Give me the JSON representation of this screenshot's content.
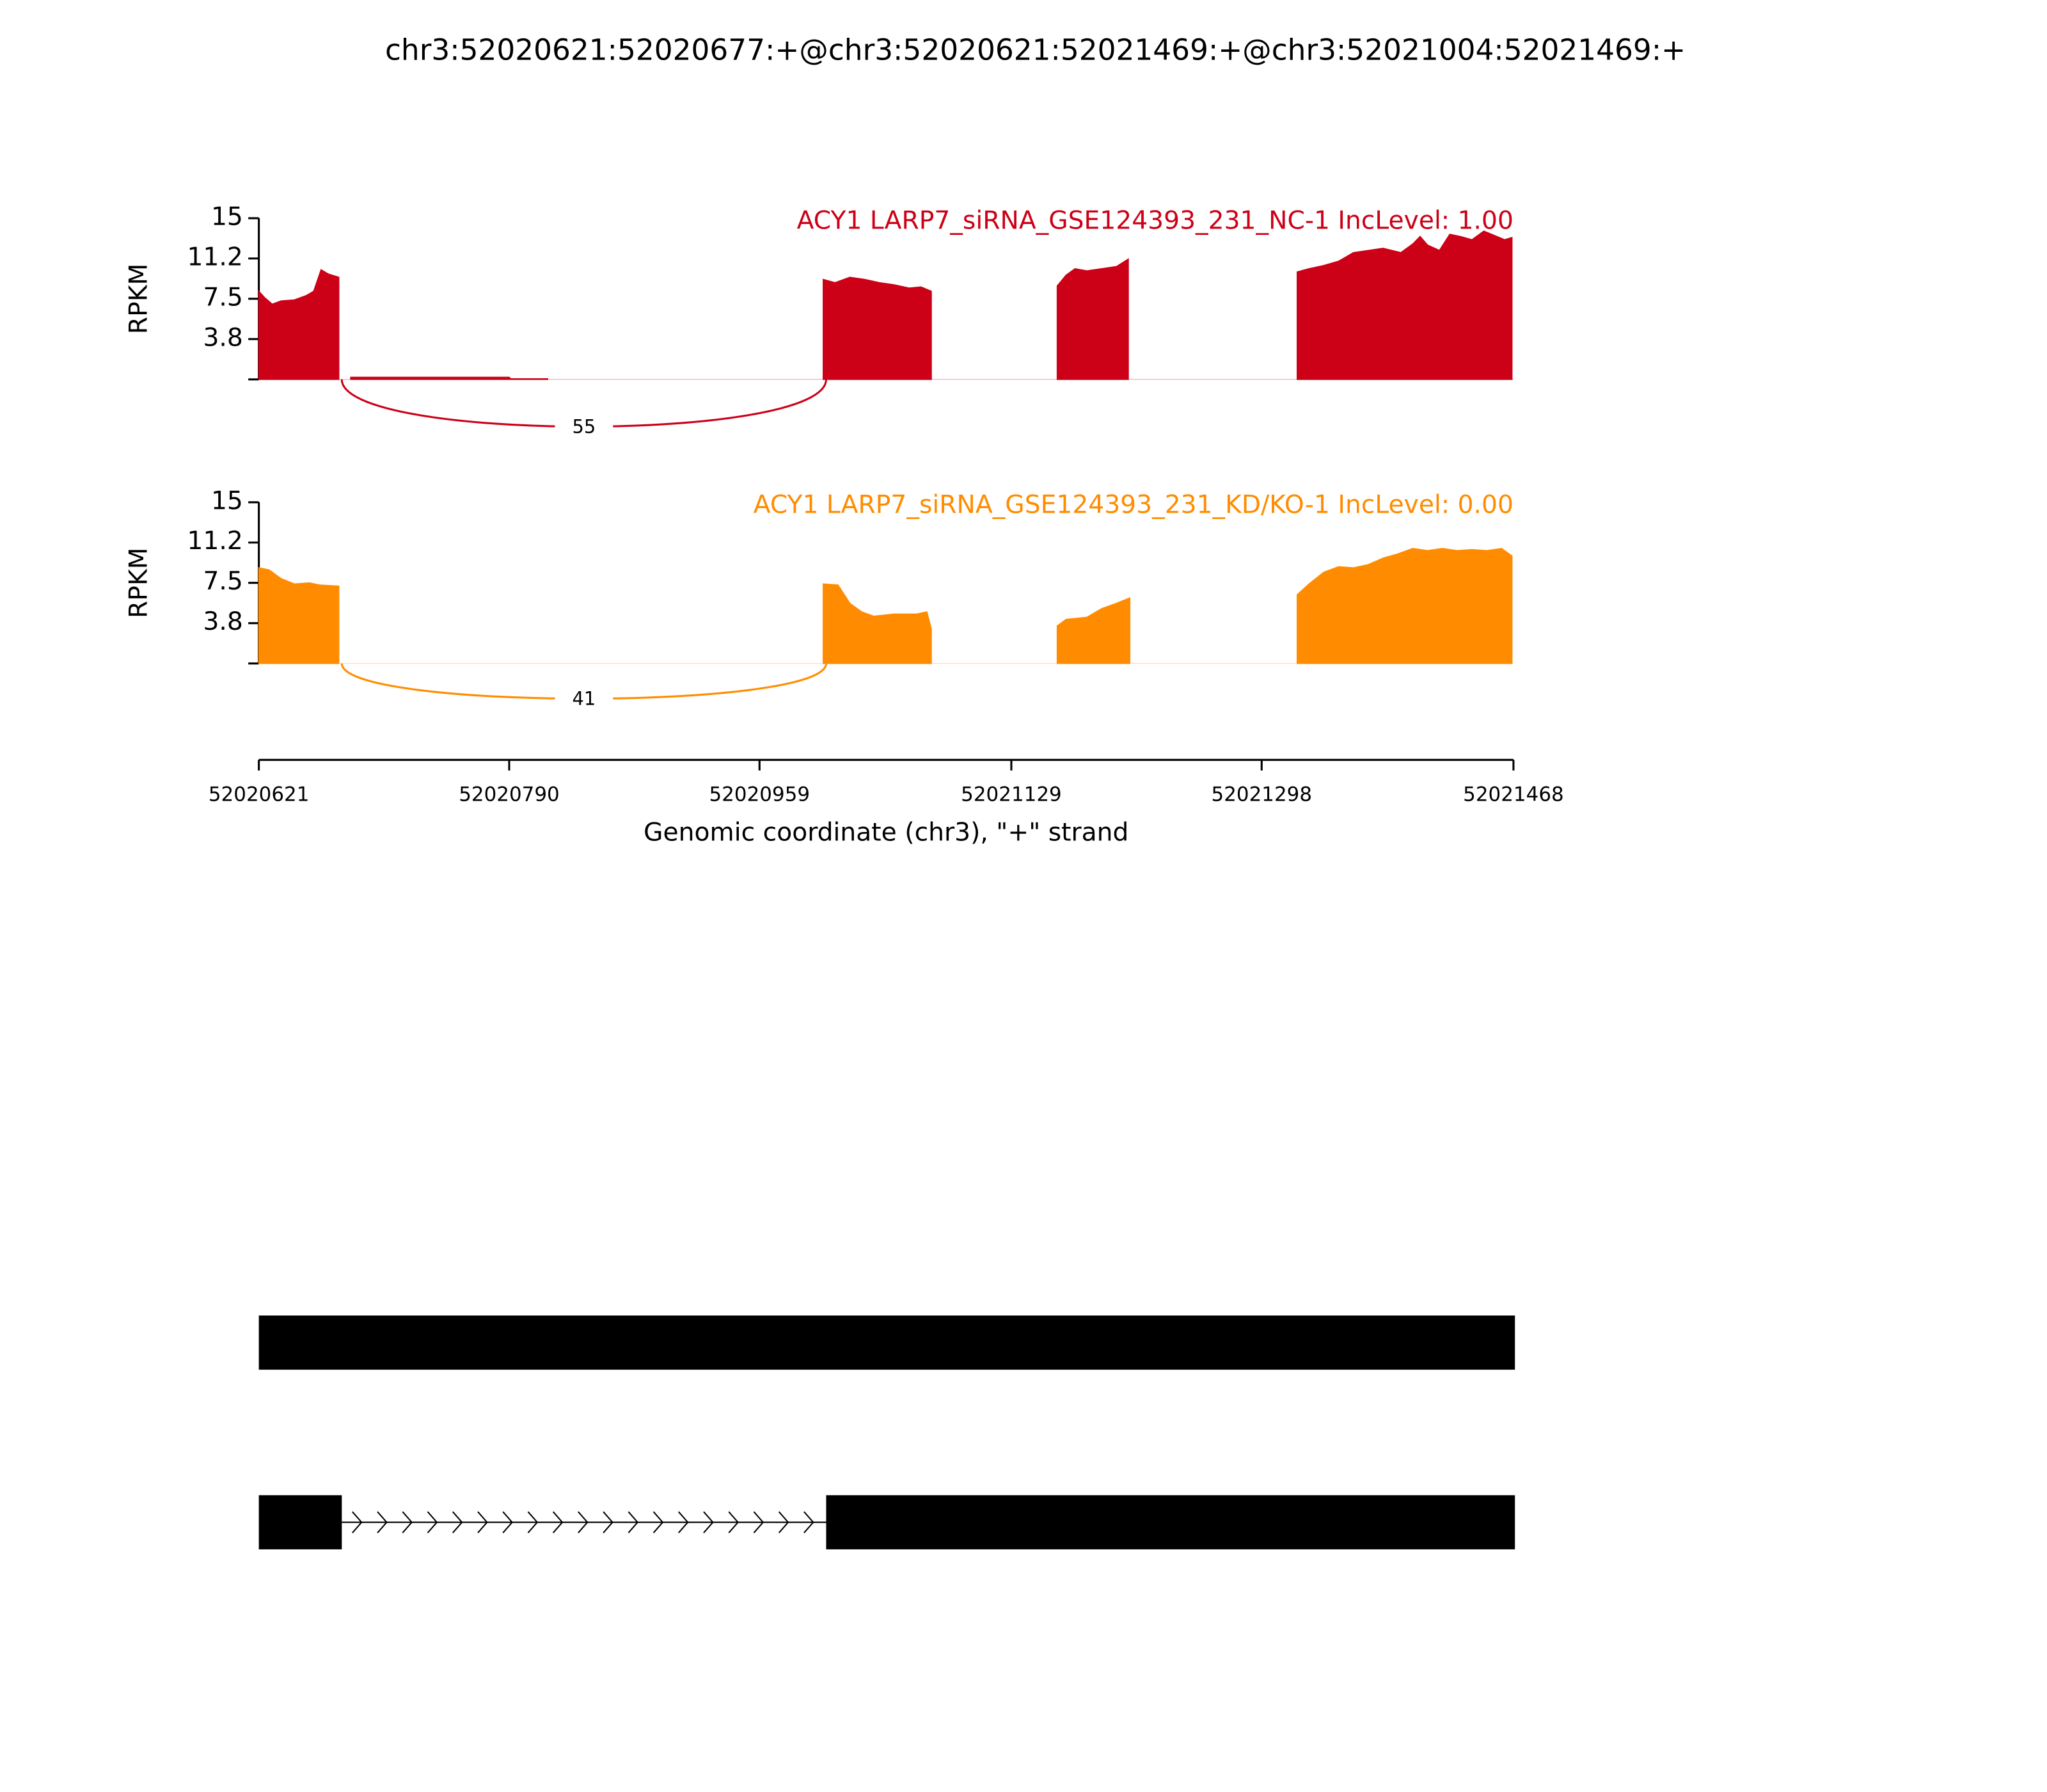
{
  "title": "chr3:52020621:52020677:+@chr3:52020621:52021469:+@chr3:52021004:52021469:+",
  "chart_data": [
    {
      "type": "area",
      "label": "ACY1 LARP7_siRNA_GSE124393_231_NC-1 IncLevel: 1.00",
      "color": "#cc0016",
      "ylabel": "RPKM",
      "ylim": [
        0,
        15
      ],
      "yticks": [
        {
          "value": 3.75,
          "label": "3.8"
        },
        7.5,
        {
          "value": 11.25,
          "label": "11.2"
        },
        15
      ],
      "x": [
        52020621,
        52020625,
        52020630,
        52020636,
        52020645,
        52020653,
        52020658,
        52020663,
        52020668,
        52020675,
        52020677,
        52020683,
        52020790,
        52020791,
        52020816,
        52020900,
        52021002,
        52021010,
        52021020,
        52021030,
        52021040,
        52021050,
        52021060,
        52021068,
        52021075,
        52021110,
        52021160,
        52021166,
        52021172,
        52021180,
        52021190,
        52021200,
        52021208,
        52021260,
        52021322,
        52021330,
        52021340,
        52021350,
        52021360,
        52021370,
        52021380,
        52021392,
        52021400,
        52021405,
        52021410,
        52021418,
        52021425,
        52021432,
        52021440,
        52021448,
        52021455,
        52021462,
        52021467
      ],
      "values": [
        8.2,
        7.6,
        7.0,
        7.3,
        7.4,
        7.8,
        8.2,
        10.2,
        9.8,
        9.5,
        null,
        0.2,
        0.2,
        0.06,
        0.06,
        null,
        9.3,
        9.0,
        9.5,
        9.3,
        9.0,
        8.8,
        8.5,
        8.6,
        8.2,
        null,
        8.7,
        9.7,
        10.3,
        10.1,
        10.3,
        10.5,
        11.2,
        null,
        10.0,
        10.3,
        10.6,
        11.0,
        11.8,
        12.0,
        12.2,
        11.8,
        12.6,
        13.3,
        12.5,
        12.0,
        13.5,
        13.3,
        13.0,
        13.8,
        13.4,
        13.0,
        13.2
      ],
      "junctions": [
        {
          "start": 52020677,
          "end": 52021004,
          "count": 55
        }
      ]
    },
    {
      "type": "area",
      "label": "ACY1 LARP7_siRNA_GSE124393_231_KD/KO-1 IncLevel: 0.00",
      "color": "#ff8c00",
      "ylabel": "RPKM",
      "ylim": [
        0,
        15
      ],
      "yticks": [
        {
          "value": 3.75,
          "label": "3.8"
        },
        7.5,
        {
          "value": 11.25,
          "label": "11.2"
        },
        15
      ],
      "x": [
        52020621,
        52020628,
        52020636,
        52020645,
        52020655,
        52020662,
        52020675,
        52020677,
        52021002,
        52021012,
        52021020,
        52021028,
        52021036,
        52021050,
        52021065,
        52021072,
        52021075,
        52021110,
        52021160,
        52021166,
        52021180,
        52021190,
        52021200,
        52021209,
        52021260,
        52021322,
        52021330,
        52021340,
        52021350,
        52021360,
        52021370,
        52021380,
        52021390,
        52021400,
        52021410,
        52021420,
        52021430,
        52021440,
        52021450,
        52021460,
        52021467
      ],
      "values": [
        8.9,
        8.7,
        7.9,
        7.4,
        7.5,
        7.3,
        7.2,
        null,
        7.4,
        7.3,
        5.6,
        4.8,
        4.4,
        4.6,
        4.6,
        4.8,
        3.2,
        null,
        3.5,
        4.1,
        4.3,
        5.1,
        5.6,
        6.1,
        null,
        6.4,
        7.4,
        8.5,
        9.0,
        8.9,
        9.2,
        9.8,
        10.2,
        10.7,
        10.5,
        10.7,
        10.5,
        10.6,
        10.5,
        10.7,
        10.0
      ],
      "junctions": [
        {
          "start": 52020677,
          "end": 52021004,
          "count": 41
        }
      ]
    }
  ],
  "xaxis": {
    "label": "Genomic coordinate (chr3), \"+\" strand",
    "xlim": [
      52020621,
      52021468
    ],
    "xticks": [
      52020621,
      52020790,
      52020959,
      52021129,
      52021298,
      52021468
    ]
  },
  "transcripts": [
    [
      [
        52020621,
        52021469
      ]
    ],
    [
      [
        52020621,
        52020677
      ],
      [
        52021004,
        52021469
      ]
    ]
  ]
}
